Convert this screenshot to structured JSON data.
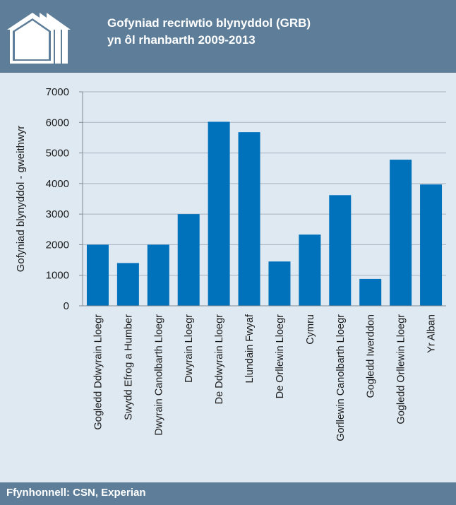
{
  "header": {
    "title_line1": "Gofyniad recriwtio blynyddol (GRB)",
    "title_line2": "yn ôl rhanbarth 2009-2013",
    "logo_icon": "houses-icon"
  },
  "footer": {
    "source": "Ffynhonnell: CSN, Experian"
  },
  "colors": {
    "header_bg": "#5e7d99",
    "panel_bg": "#dfe9f2",
    "bar": "#0072bc"
  },
  "chart_data": {
    "type": "bar",
    "title": "Gofyniad recriwtio blynyddol (GRB) yn ôl rhanbarth 2009-2013",
    "xlabel": "",
    "ylabel": "Gofyniad blynyddol - gweithwyr",
    "ylim": [
      0,
      7000
    ],
    "yticks": [
      "0",
      "1000",
      "2000",
      "3000",
      "4000",
      "5000",
      "6000",
      "7000"
    ],
    "grid": true,
    "categories": [
      "Gogledd Ddwyrain Lloegr",
      "Swydd Efrog a Humber",
      "Dwyrain Canolbarth Lloegr",
      "Dwyrain Lloegr",
      "De Ddwyrain Lloegr",
      "Llundain Fwyaf",
      "De Orllewin Lloegr",
      "Cymru",
      "Gorllewin Canolbarth Lloegr",
      "Gogledd Iwerddon",
      "Gogledd Orllewin Lloegr",
      "Yr Alban"
    ],
    "values": [
      2000,
      1400,
      2000,
      3000,
      6020,
      5680,
      1450,
      2330,
      3620,
      880,
      4780,
      3970
    ]
  }
}
